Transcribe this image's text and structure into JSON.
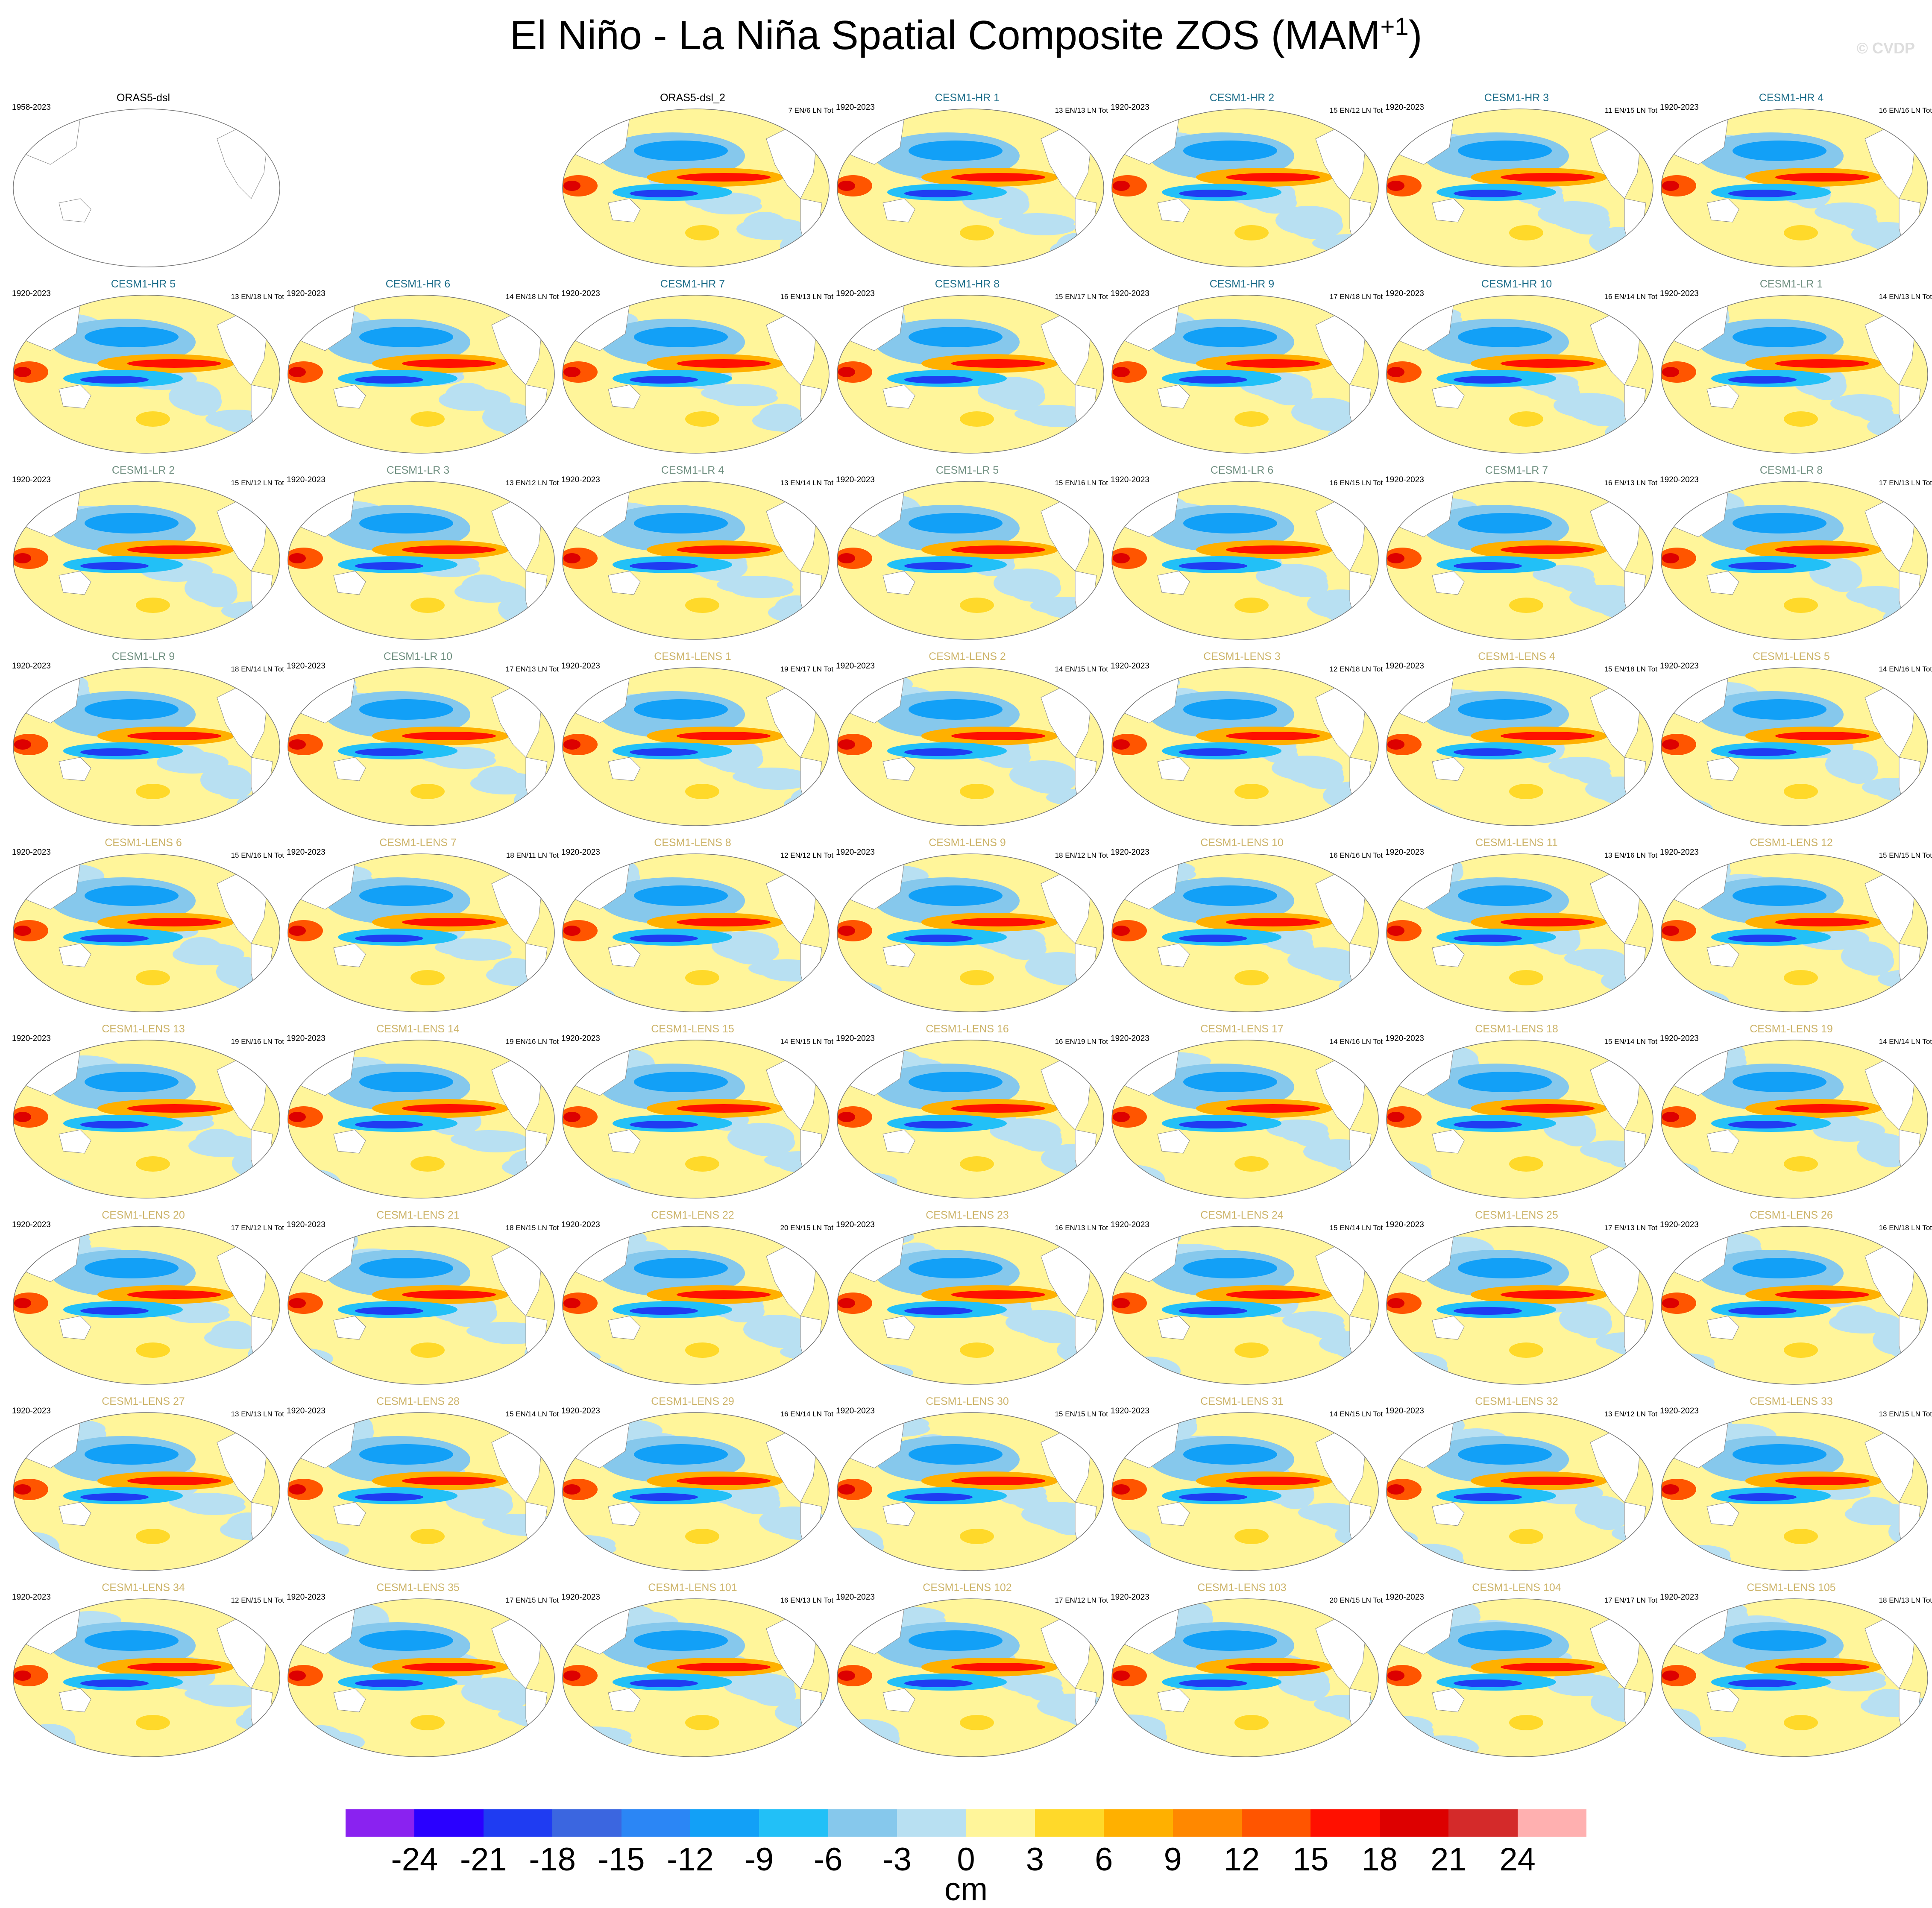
{
  "title_main": "El Niño - La Niña Spatial Composite ZOS (MAM",
  "title_sup": "+1",
  "title_end": ")",
  "watermark": "© CVDP",
  "colors": {
    "oras": "#000000",
    "hr": "#1f6f8b",
    "lr": "#6f8f80",
    "lens": "#cdb46a"
  },
  "panels": [
    {
      "title": "ORAS5-dsl",
      "group": "oras",
      "years": "1958-2023",
      "counts": "",
      "col": 0,
      "row": 0,
      "empty": true
    },
    {
      "title": "ORAS5-dsl_2",
      "group": "oras",
      "years": "",
      "counts": "7 EN/6 LN Tot",
      "col": 2,
      "row": 0
    },
    {
      "title": "CESM1-HR 1",
      "group": "hr",
      "years": "1920-2023",
      "counts": "13 EN/13 LN Tot",
      "col": 3,
      "row": 0
    },
    {
      "title": "CESM1-HR 2",
      "group": "hr",
      "years": "1920-2023",
      "counts": "15 EN/12 LN Tot",
      "col": 4,
      "row": 0
    },
    {
      "title": "CESM1-HR 3",
      "group": "hr",
      "years": "1920-2023",
      "counts": "11 EN/15 LN Tot",
      "col": 5,
      "row": 0
    },
    {
      "title": "CESM1-HR 4",
      "group": "hr",
      "years": "1920-2023",
      "counts": "16 EN/16 LN Tot",
      "col": 6,
      "row": 0
    },
    {
      "title": "CESM1-HR 5",
      "group": "hr",
      "years": "1920-2023",
      "counts": "13 EN/18 LN Tot",
      "col": 0,
      "row": 1
    },
    {
      "title": "CESM1-HR 6",
      "group": "hr",
      "years": "1920-2023",
      "counts": "14 EN/18 LN Tot",
      "col": 1,
      "row": 1
    },
    {
      "title": "CESM1-HR 7",
      "group": "hr",
      "years": "1920-2023",
      "counts": "16 EN/13 LN Tot",
      "col": 2,
      "row": 1
    },
    {
      "title": "CESM1-HR 8",
      "group": "hr",
      "years": "1920-2023",
      "counts": "15 EN/17 LN Tot",
      "col": 3,
      "row": 1
    },
    {
      "title": "CESM1-HR 9",
      "group": "hr",
      "years": "1920-2023",
      "counts": "17 EN/18 LN Tot",
      "col": 4,
      "row": 1
    },
    {
      "title": "CESM1-HR 10",
      "group": "hr",
      "years": "1920-2023",
      "counts": "16 EN/14 LN Tot",
      "col": 5,
      "row": 1
    },
    {
      "title": "CESM1-LR 1",
      "group": "lr",
      "years": "1920-2023",
      "counts": "14 EN/13 LN Tot",
      "col": 6,
      "row": 1
    },
    {
      "title": "CESM1-LR 2",
      "group": "lr",
      "years": "1920-2023",
      "counts": "15 EN/12 LN Tot",
      "col": 0,
      "row": 2
    },
    {
      "title": "CESM1-LR 3",
      "group": "lr",
      "years": "1920-2023",
      "counts": "13 EN/12 LN Tot",
      "col": 1,
      "row": 2
    },
    {
      "title": "CESM1-LR 4",
      "group": "lr",
      "years": "1920-2023",
      "counts": "13 EN/14 LN Tot",
      "col": 2,
      "row": 2
    },
    {
      "title": "CESM1-LR 5",
      "group": "lr",
      "years": "1920-2023",
      "counts": "15 EN/16 LN Tot",
      "col": 3,
      "row": 2
    },
    {
      "title": "CESM1-LR 6",
      "group": "lr",
      "years": "1920-2023",
      "counts": "16 EN/15 LN Tot",
      "col": 4,
      "row": 2
    },
    {
      "title": "CESM1-LR 7",
      "group": "lr",
      "years": "1920-2023",
      "counts": "16 EN/13 LN Tot",
      "col": 5,
      "row": 2
    },
    {
      "title": "CESM1-LR 8",
      "group": "lr",
      "years": "1920-2023",
      "counts": "17 EN/13 LN Tot",
      "col": 6,
      "row": 2
    },
    {
      "title": "CESM1-LR 9",
      "group": "lr",
      "years": "1920-2023",
      "counts": "18 EN/14 LN Tot",
      "col": 0,
      "row": 3
    },
    {
      "title": "CESM1-LR 10",
      "group": "lr",
      "years": "1920-2023",
      "counts": "17 EN/13 LN Tot",
      "col": 1,
      "row": 3
    },
    {
      "title": "CESM1-LENS 1",
      "group": "lens",
      "years": "1920-2023",
      "counts": "19 EN/17 LN Tot",
      "col": 2,
      "row": 3
    },
    {
      "title": "CESM1-LENS 2",
      "group": "lens",
      "years": "1920-2023",
      "counts": "14 EN/15 LN Tot",
      "col": 3,
      "row": 3
    },
    {
      "title": "CESM1-LENS 3",
      "group": "lens",
      "years": "1920-2023",
      "counts": "12 EN/18 LN Tot",
      "col": 4,
      "row": 3
    },
    {
      "title": "CESM1-LENS 4",
      "group": "lens",
      "years": "1920-2023",
      "counts": "15 EN/18 LN Tot",
      "col": 5,
      "row": 3
    },
    {
      "title": "CESM1-LENS 5",
      "group": "lens",
      "years": "1920-2023",
      "counts": "14 EN/16 LN Tot",
      "col": 6,
      "row": 3
    },
    {
      "title": "CESM1-LENS 6",
      "group": "lens",
      "years": "1920-2023",
      "counts": "15 EN/16 LN Tot",
      "col": 0,
      "row": 4
    },
    {
      "title": "CESM1-LENS 7",
      "group": "lens",
      "years": "1920-2023",
      "counts": "18 EN/11 LN Tot",
      "col": 1,
      "row": 4
    },
    {
      "title": "CESM1-LENS 8",
      "group": "lens",
      "years": "1920-2023",
      "counts": "12 EN/12 LN Tot",
      "col": 2,
      "row": 4
    },
    {
      "title": "CESM1-LENS 9",
      "group": "lens",
      "years": "1920-2023",
      "counts": "18 EN/12 LN Tot",
      "col": 3,
      "row": 4
    },
    {
      "title": "CESM1-LENS 10",
      "group": "lens",
      "years": "1920-2023",
      "counts": "16 EN/16 LN Tot",
      "col": 4,
      "row": 4
    },
    {
      "title": "CESM1-LENS 11",
      "group": "lens",
      "years": "1920-2023",
      "counts": "13 EN/16 LN Tot",
      "col": 5,
      "row": 4
    },
    {
      "title": "CESM1-LENS 12",
      "group": "lens",
      "years": "1920-2023",
      "counts": "15 EN/15 LN Tot",
      "col": 6,
      "row": 4
    },
    {
      "title": "CESM1-LENS 13",
      "group": "lens",
      "years": "1920-2023",
      "counts": "19 EN/16 LN Tot",
      "col": 0,
      "row": 5
    },
    {
      "title": "CESM1-LENS 14",
      "group": "lens",
      "years": "1920-2023",
      "counts": "19 EN/16 LN Tot",
      "col": 1,
      "row": 5
    },
    {
      "title": "CESM1-LENS 15",
      "group": "lens",
      "years": "1920-2023",
      "counts": "14 EN/15 LN Tot",
      "col": 2,
      "row": 5
    },
    {
      "title": "CESM1-LENS 16",
      "group": "lens",
      "years": "1920-2023",
      "counts": "16 EN/19 LN Tot",
      "col": 3,
      "row": 5
    },
    {
      "title": "CESM1-LENS 17",
      "group": "lens",
      "years": "1920-2023",
      "counts": "14 EN/16 LN Tot",
      "col": 4,
      "row": 5
    },
    {
      "title": "CESM1-LENS 18",
      "group": "lens",
      "years": "1920-2023",
      "counts": "15 EN/14 LN Tot",
      "col": 5,
      "row": 5
    },
    {
      "title": "CESM1-LENS 19",
      "group": "lens",
      "years": "1920-2023",
      "counts": "14 EN/14 LN Tot",
      "col": 6,
      "row": 5
    },
    {
      "title": "CESM1-LENS 20",
      "group": "lens",
      "years": "1920-2023",
      "counts": "17 EN/12 LN Tot",
      "col": 0,
      "row": 6
    },
    {
      "title": "CESM1-LENS 21",
      "group": "lens",
      "years": "1920-2023",
      "counts": "18 EN/15 LN Tot",
      "col": 1,
      "row": 6
    },
    {
      "title": "CESM1-LENS 22",
      "group": "lens",
      "years": "1920-2023",
      "counts": "20 EN/15 LN Tot",
      "col": 2,
      "row": 6
    },
    {
      "title": "CESM1-LENS 23",
      "group": "lens",
      "years": "1920-2023",
      "counts": "16 EN/13 LN Tot",
      "col": 3,
      "row": 6
    },
    {
      "title": "CESM1-LENS 24",
      "group": "lens",
      "years": "1920-2023",
      "counts": "15 EN/14 LN Tot",
      "col": 4,
      "row": 6
    },
    {
      "title": "CESM1-LENS 25",
      "group": "lens",
      "years": "1920-2023",
      "counts": "17 EN/13 LN Tot",
      "col": 5,
      "row": 6
    },
    {
      "title": "CESM1-LENS 26",
      "group": "lens",
      "years": "1920-2023",
      "counts": "16 EN/18 LN Tot",
      "col": 6,
      "row": 6
    },
    {
      "title": "CESM1-LENS 27",
      "group": "lens",
      "years": "1920-2023",
      "counts": "13 EN/13 LN Tot",
      "col": 0,
      "row": 7
    },
    {
      "title": "CESM1-LENS 28",
      "group": "lens",
      "years": "1920-2023",
      "counts": "15 EN/14 LN Tot",
      "col": 1,
      "row": 7
    },
    {
      "title": "CESM1-LENS 29",
      "group": "lens",
      "years": "1920-2023",
      "counts": "16 EN/14 LN Tot",
      "col": 2,
      "row": 7
    },
    {
      "title": "CESM1-LENS 30",
      "group": "lens",
      "years": "1920-2023",
      "counts": "15 EN/15 LN Tot",
      "col": 3,
      "row": 7
    },
    {
      "title": "CESM1-LENS 31",
      "group": "lens",
      "years": "1920-2023",
      "counts": "14 EN/15 LN Tot",
      "col": 4,
      "row": 7
    },
    {
      "title": "CESM1-LENS 32",
      "group": "lens",
      "years": "1920-2023",
      "counts": "13 EN/12 LN Tot",
      "col": 5,
      "row": 7
    },
    {
      "title": "CESM1-LENS 33",
      "group": "lens",
      "years": "1920-2023",
      "counts": "13 EN/15 LN Tot",
      "col": 6,
      "row": 7
    },
    {
      "title": "CESM1-LENS 34",
      "group": "lens",
      "years": "1920-2023",
      "counts": "12 EN/15 LN Tot",
      "col": 0,
      "row": 8
    },
    {
      "title": "CESM1-LENS 35",
      "group": "lens",
      "years": "1920-2023",
      "counts": "17 EN/15 LN Tot",
      "col": 1,
      "row": 8
    },
    {
      "title": "CESM1-LENS 101",
      "group": "lens",
      "years": "1920-2023",
      "counts": "16 EN/13 LN Tot",
      "col": 2,
      "row": 8
    },
    {
      "title": "CESM1-LENS 102",
      "group": "lens",
      "years": "1920-2023",
      "counts": "17 EN/12 LN Tot",
      "col": 3,
      "row": 8
    },
    {
      "title": "CESM1-LENS 103",
      "group": "lens",
      "years": "1920-2023",
      "counts": "20 EN/15 LN Tot",
      "col": 4,
      "row": 8
    },
    {
      "title": "CESM1-LENS 104",
      "group": "lens",
      "years": "1920-2023",
      "counts": "17 EN/17 LN Tot",
      "col": 5,
      "row": 8
    },
    {
      "title": "CESM1-LENS 105",
      "group": "lens",
      "years": "1920-2023",
      "counts": "18 EN/13 LN Tot",
      "col": 6,
      "row": 8
    }
  ],
  "chart_data": {
    "type": "heatmap",
    "title": "El Niño - La Niña Spatial Composite ZOS (MAM+1)",
    "colorbar": {
      "label": "cm",
      "levels": [
        -24,
        -21,
        -18,
        -15,
        -12,
        -9,
        -6,
        -3,
        0,
        3,
        6,
        9,
        12,
        15,
        18,
        21,
        24
      ],
      "colors": [
        "#8a22f0",
        "#2a00ff",
        "#1f3cf2",
        "#3b66e0",
        "#2b86f5",
        "#12a0f7",
        "#22c0f7",
        "#86c8ec",
        "#b8e0f2",
        "#fff59a",
        "#ffd92a",
        "#ffb000",
        "#ff8800",
        "#ff5500",
        "#ff1000",
        "#dd0000",
        "#d42a2a",
        "#ffb0b0"
      ]
    }
  }
}
